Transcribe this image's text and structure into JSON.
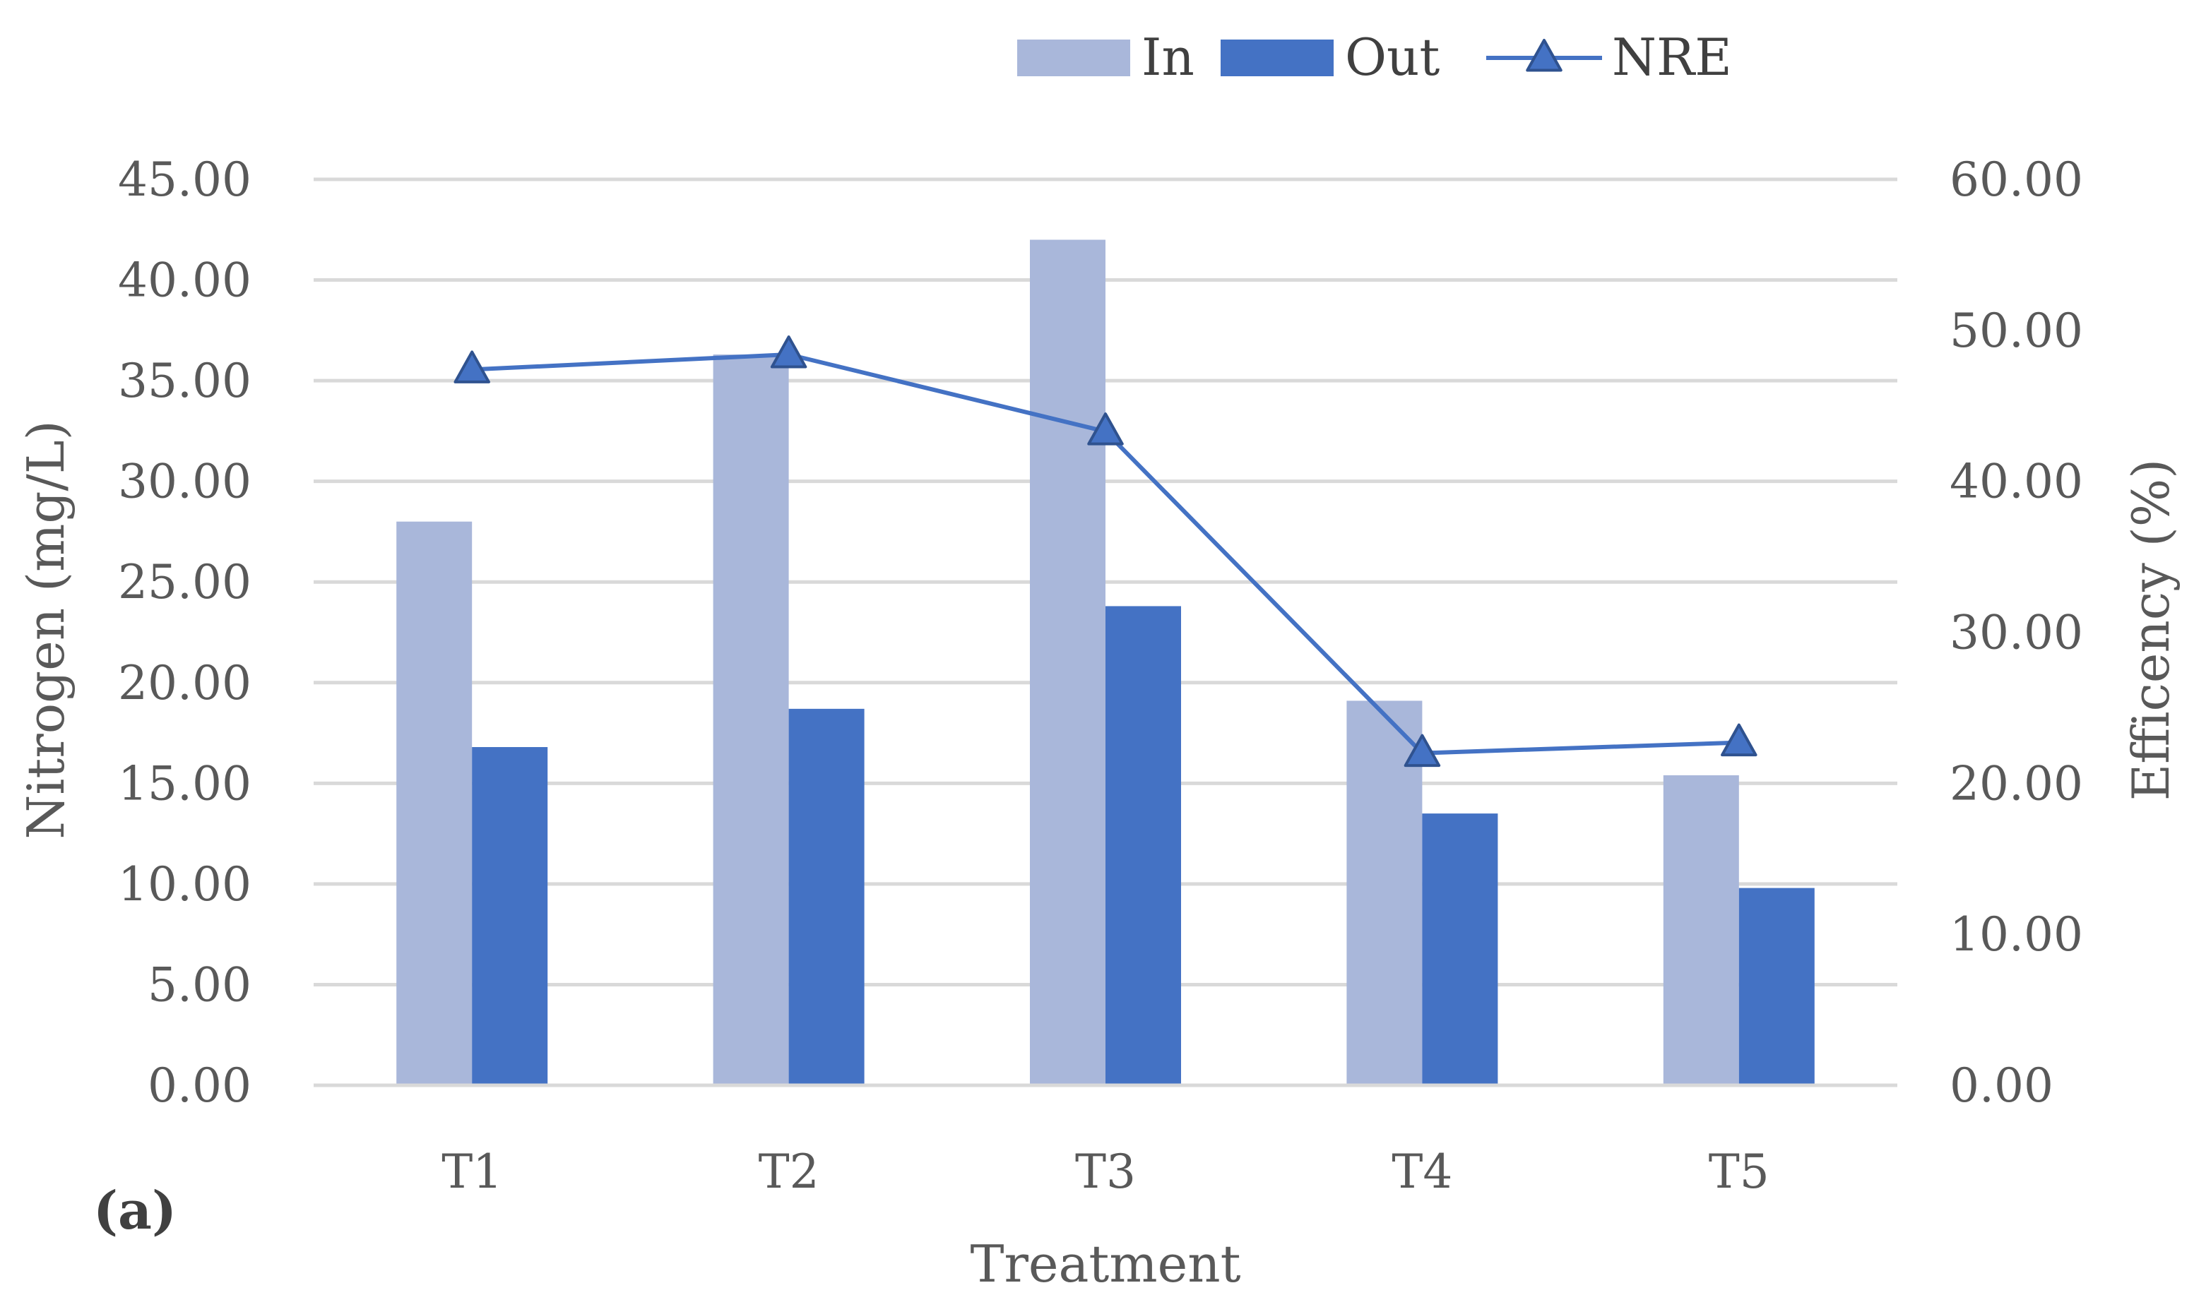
{
  "chart_data": {
    "type": "bar",
    "panel_label": "(a)",
    "categories": [
      "T1",
      "T2",
      "T3",
      "T4",
      "T5"
    ],
    "xlabel": "Treatment",
    "ylabel": "Nitrogen (mg/L)",
    "ylabel_right": "Efficency (%)",
    "ylim": [
      0,
      45
    ],
    "ylim_right": [
      0,
      60
    ],
    "yticks": [
      "0.00",
      "5.00",
      "10.00",
      "15.00",
      "20.00",
      "25.00",
      "30.00",
      "35.00",
      "40.00",
      "45.00"
    ],
    "yticks_right": [
      "0.00",
      "10.00",
      "20.00",
      "30.00",
      "40.00",
      "50.00",
      "60.00"
    ],
    "grid": true,
    "legend_position": "top-right",
    "series": [
      {
        "name": "In",
        "type": "bar",
        "axis": "left",
        "color": "#A9B7DA",
        "values": [
          28.0,
          36.3,
          42.0,
          19.1,
          15.4
        ]
      },
      {
        "name": "Out",
        "type": "bar",
        "axis": "left",
        "color": "#4472C4",
        "values": [
          16.8,
          18.7,
          23.8,
          13.5,
          9.8
        ]
      },
      {
        "name": "NRE",
        "type": "line",
        "axis": "right",
        "marker": "triangle",
        "color": "#4472C4",
        "values": [
          47.4,
          48.4,
          43.3,
          22.0,
          22.7
        ]
      }
    ]
  }
}
